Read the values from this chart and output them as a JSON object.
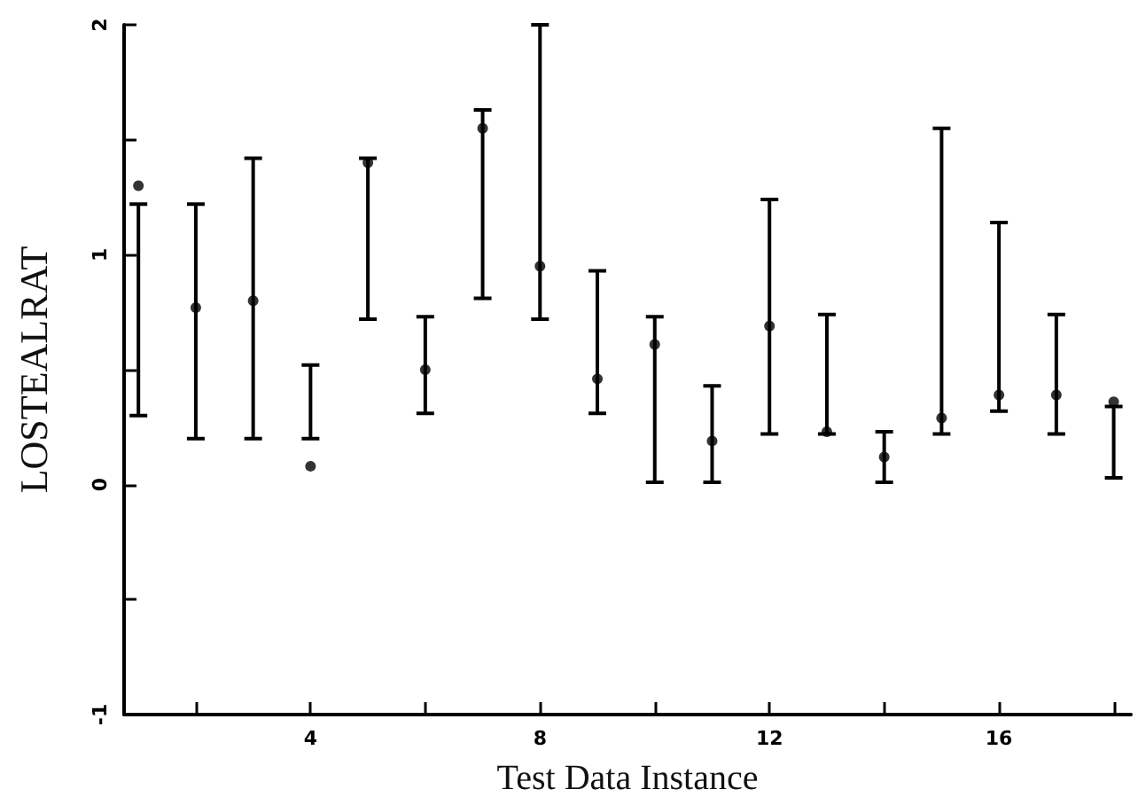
{
  "chart_data": {
    "type": "scatter",
    "xlabel": "Test Data Instance",
    "ylabel": "LOSTEALRAT",
    "x": [
      1,
      2,
      3,
      4,
      5,
      6,
      7,
      8,
      9,
      10,
      11,
      12,
      13,
      14,
      15,
      16,
      17,
      18
    ],
    "values": [
      1.3,
      0.77,
      0.8,
      0.08,
      1.4,
      0.5,
      1.55,
      0.95,
      0.46,
      0.61,
      0.19,
      0.69,
      0.23,
      0.12,
      0.29,
      0.39,
      0.39,
      0.36
    ],
    "errors": [
      [
        0.3,
        1.22
      ],
      [
        0.2,
        1.22
      ],
      [
        0.2,
        1.42
      ],
      [
        0.2,
        0.52
      ],
      [
        0.72,
        1.42
      ],
      [
        0.31,
        0.73
      ],
      [
        0.81,
        1.63
      ],
      [
        0.72,
        2.0
      ],
      [
        0.31,
        0.93
      ],
      [
        0.01,
        0.73
      ],
      [
        0.01,
        0.43
      ],
      [
        0.22,
        1.24
      ],
      [
        0.22,
        0.74
      ],
      [
        0.01,
        0.23
      ],
      [
        0.22,
        1.55
      ],
      [
        0.32,
        1.14
      ],
      [
        0.22,
        0.74
      ],
      [
        0.03,
        0.34
      ]
    ],
    "color": "#000000",
    "marker": "circle",
    "xlim": [
      0.75,
      18.3
    ],
    "xticks": [
      {
        "value": 2,
        "label": null
      },
      4,
      {
        "value": 6,
        "label": null
      },
      8,
      {
        "value": 10,
        "label": null
      },
      12,
      {
        "value": 14,
        "label": null
      },
      16,
      {
        "value": 18,
        "label": null
      }
    ],
    "ylim": [
      -1,
      2
    ],
    "yticks": [
      -1,
      {
        "value": -0.5,
        "label": null
      },
      0,
      {
        "value": 0.5,
        "label": null
      },
      1,
      {
        "value": 1.5,
        "label": null
      },
      2
    ],
    "grid": false
  }
}
